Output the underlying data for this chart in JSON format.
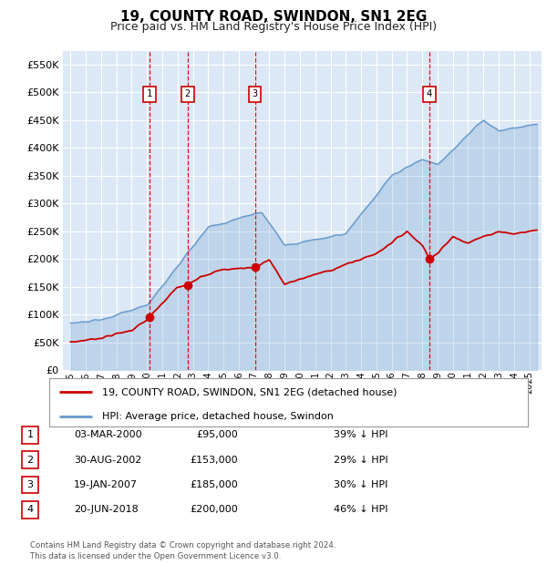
{
  "title": "19, COUNTY ROAD, SWINDON, SN1 2EG",
  "subtitle": "Price paid vs. HM Land Registry's House Price Index (HPI)",
  "legend_red": "19, COUNTY ROAD, SWINDON, SN1 2EG (detached house)",
  "legend_blue": "HPI: Average price, detached house, Swindon",
  "footnote": "Contains HM Land Registry data © Crown copyright and database right 2024.\nThis data is licensed under the Open Government Licence v3.0.",
  "transactions": [
    {
      "num": 1,
      "date": "03-MAR-2000",
      "price": 95000,
      "pct": "39%",
      "x_year": 2000.17
    },
    {
      "num": 2,
      "date": "30-AUG-2002",
      "price": 153000,
      "pct": "29%",
      "x_year": 2002.66
    },
    {
      "num": 3,
      "date": "19-JAN-2007",
      "price": 185000,
      "pct": "30%",
      "x_year": 2007.05
    },
    {
      "num": 4,
      "date": "20-JUN-2018",
      "price": 200000,
      "pct": "46%",
      "x_year": 2018.47
    }
  ],
  "ylim": [
    0,
    575000
  ],
  "xlim_start": 1994.5,
  "xlim_end": 2025.8,
  "plot_bg": "#dce8f5",
  "red_color": "#cc0000",
  "blue_color": "#6699cc",
  "dashed_color": "#cc0000",
  "grid_color": "#ffffff",
  "title_fontsize": 11,
  "subtitle_fontsize": 9
}
